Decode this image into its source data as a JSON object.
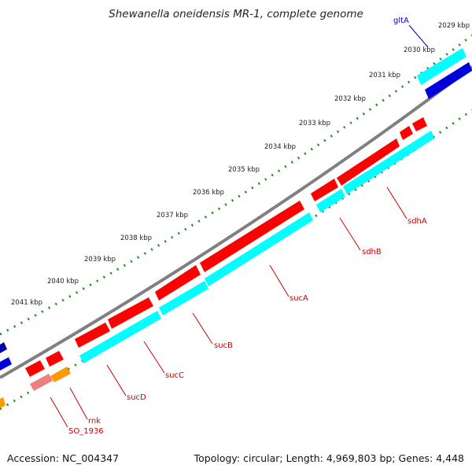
{
  "header": {
    "title": "Shewanella oneidensis MR-1, complete genome"
  },
  "footer": {
    "accession": "Accession: NC_004347",
    "summary": "Topology: circular; Length: 4,969,803 bp; Genes: 4,448"
  },
  "ruler": {
    "labels": [
      "2029 kbp",
      "2030 kbp",
      "2031 kbp",
      "2032 kbp",
      "2033 kbp",
      "2034 kbp",
      "2035 kbp",
      "2036 kbp",
      "2037 kbp",
      "2038 kbp",
      "2039 kbp",
      "2040 kbp",
      "2041 kbp"
    ]
  },
  "genes": {
    "gltA": "gltA",
    "sdhA": "sdhA",
    "sdhB": "sdhB",
    "sucA": "sucA",
    "sucB": "sucB",
    "sucC": "sucC",
    "sucD": "sucD",
    "rnk": "rnk",
    "SO_1936": "SO_1936"
  },
  "colors": {
    "forward_gene": "#ff0000",
    "reverse_cds": "#00ffff",
    "blue_feature": "#0000dd",
    "orange_feature": "#ff9900",
    "pink_feature": "#f08080",
    "backbone": "#808080",
    "ruler_dots": "#228b22",
    "red_label": "#cc0000",
    "blue_label": "#0000cc"
  }
}
